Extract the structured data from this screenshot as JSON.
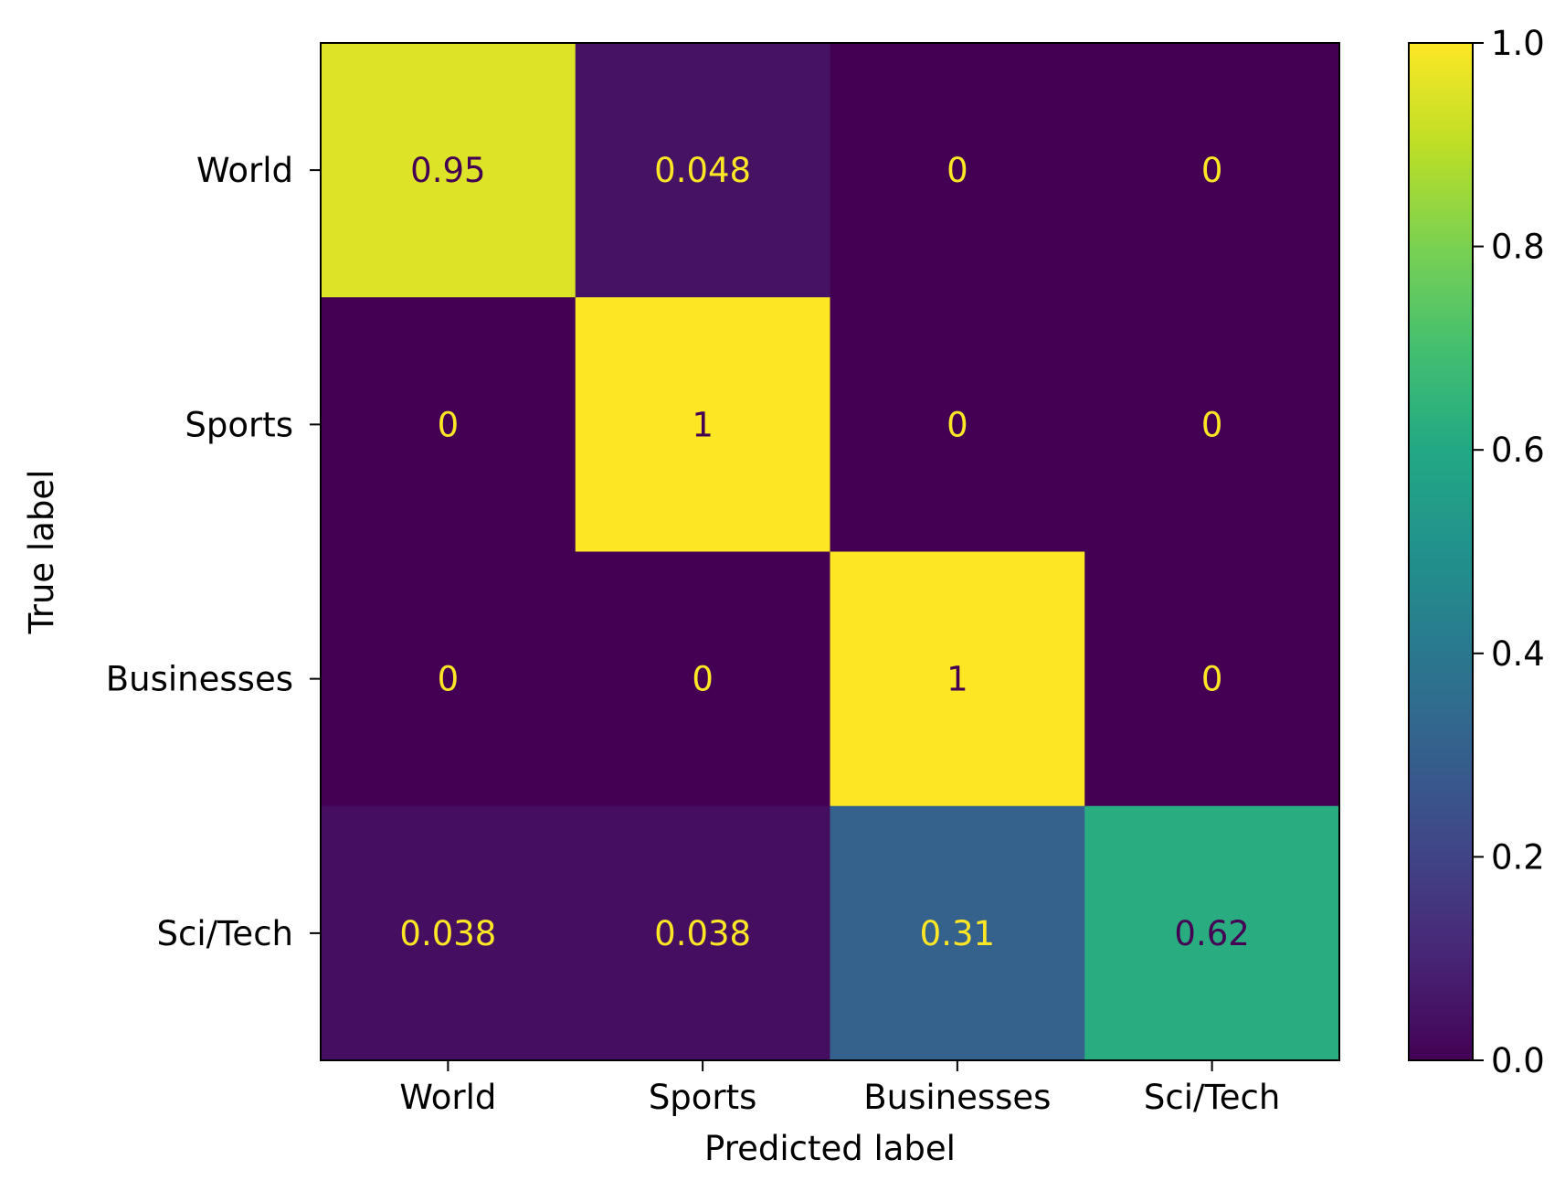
{
  "chart_data": {
    "type": "heatmap",
    "title": "",
    "xlabel": "Predicted label",
    "ylabel": "True label",
    "x_categories": [
      "World",
      "Sports",
      "Businesses",
      "Sci/Tech"
    ],
    "y_categories": [
      "World",
      "Sports",
      "Businesses",
      "Sci/Tech"
    ],
    "values": [
      [
        0.95,
        0.048,
        0,
        0
      ],
      [
        0,
        1,
        0,
        0
      ],
      [
        0,
        0,
        1,
        0
      ],
      [
        0.038,
        0.038,
        0.31,
        0.62
      ]
    ],
    "cell_labels": [
      [
        "0.95",
        "0.048",
        "0",
        "0"
      ],
      [
        "0",
        "1",
        "0",
        "0"
      ],
      [
        "0",
        "0",
        "1",
        "0"
      ],
      [
        "0.038",
        "0.038",
        "0.31",
        "0.62"
      ]
    ],
    "colormap": "viridis",
    "label_color_dark": "#440154",
    "label_color_light": "#fde725",
    "colorbar": {
      "range": [
        0.0,
        1.0
      ],
      "ticks": [
        0.0,
        0.2,
        0.4,
        0.6,
        0.8,
        1.0
      ],
      "tick_labels": [
        "0.0",
        "0.2",
        "0.4",
        "0.6",
        "0.8",
        "1.0"
      ]
    },
    "grid": false
  }
}
